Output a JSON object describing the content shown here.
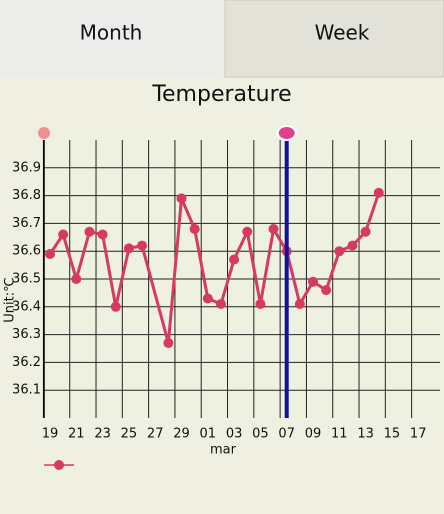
{
  "tabs": [
    "Month",
    "Week"
  ],
  "chart_data": {
    "type": "line",
    "title": "Temperature",
    "ylabel": "Unit:℃",
    "xlabel": "mar",
    "categories": [
      "19",
      null,
      "21",
      null,
      "23",
      null,
      "25",
      null,
      "27",
      null,
      "29",
      null,
      "01",
      null,
      "03",
      null,
      "05",
      null,
      "07",
      null,
      "09",
      null,
      "11",
      null,
      "13",
      null,
      "15",
      null,
      "17"
    ],
    "series": [
      {
        "color": "#d63a5e",
        "values": [
          36.59,
          36.66,
          36.5,
          36.67,
          36.66,
          36.4,
          36.61,
          36.62,
          null,
          36.27,
          36.79,
          36.68,
          36.43,
          36.41,
          36.57,
          36.67,
          36.41,
          36.68,
          36.6,
          36.41,
          36.49,
          36.46,
          36.6,
          36.62,
          36.67,
          36.81,
          null,
          null,
          null
        ]
      }
    ],
    "ylim": [
      36.0,
      37.0
    ],
    "yticks": [
      36.1,
      36.2,
      36.3,
      36.4,
      36.5,
      36.6,
      36.7,
      36.8,
      36.9
    ],
    "grid": true,
    "connect_gaps": true,
    "cursor_index": 18,
    "cursor_color": "#1010a0"
  }
}
